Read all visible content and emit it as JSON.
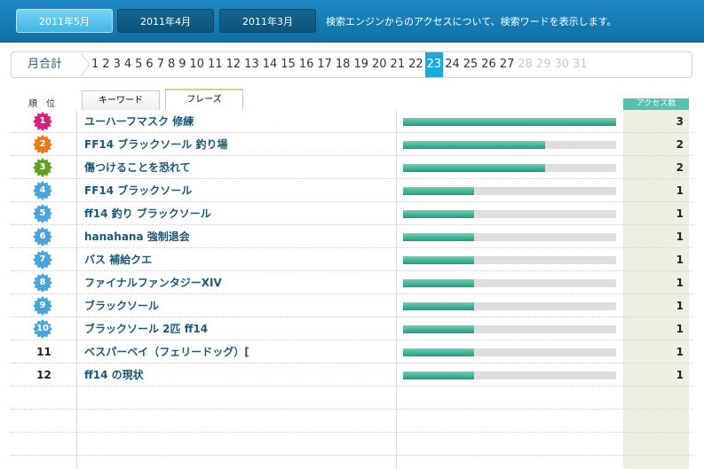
{
  "header": {
    "months": [
      {
        "label": "2011年5月",
        "active": true
      },
      {
        "label": "2011年4月",
        "active": false
      },
      {
        "label": "2011年3月",
        "active": false
      }
    ],
    "description": "検索エンジンからのアクセスについて、検索ワードを表示します。"
  },
  "daystrip": {
    "month_total_label": "月合計",
    "days": [
      "1",
      "2",
      "3",
      "4",
      "5",
      "6",
      "7",
      "8",
      "9",
      "10",
      "11",
      "12",
      "13",
      "14",
      "15",
      "16",
      "17",
      "18",
      "19",
      "20",
      "21",
      "22",
      "23",
      "24",
      "25",
      "26",
      "27",
      "28",
      "29",
      "30",
      "31"
    ],
    "active_day": "23",
    "disabled_from": 28
  },
  "table": {
    "rank_header": "順　位",
    "tabs": {
      "keyword": "キーワード",
      "phrase": "フレーズ"
    },
    "access_header": "アクセス数",
    "max_count": 3,
    "rows": [
      {
        "rank": "1",
        "word": "ユーハーフマスク 修練",
        "count": "3",
        "badge_color": "#d6207c"
      },
      {
        "rank": "2",
        "word": "FF14 ブラックソール 釣り場",
        "count": "2",
        "badge_color": "#e77a1c"
      },
      {
        "rank": "3",
        "word": "傷つけることを恐れて",
        "count": "2",
        "badge_color": "#5fa21d"
      },
      {
        "rank": "4",
        "word": "FF14 ブラックソール",
        "count": "1",
        "badge_color": "#4aa4dc"
      },
      {
        "rank": "5",
        "word": "ff14 釣り ブラックソール",
        "count": "1",
        "badge_color": "#4aa4dc"
      },
      {
        "rank": "6",
        "word": "hanahana 強制退会",
        "count": "1",
        "badge_color": "#4aa4dc"
      },
      {
        "rank": "7",
        "word": "バス 補給クエ",
        "count": "1",
        "badge_color": "#4aa4dc"
      },
      {
        "rank": "8",
        "word": "ファイナルファンタジーXIV",
        "count": "1",
        "badge_color": "#4aa4dc"
      },
      {
        "rank": "9",
        "word": "ブラックソール",
        "count": "1",
        "badge_color": "#4aa4dc"
      },
      {
        "rank": "10",
        "word": "ブラックソール 2匹 ff14",
        "count": "1",
        "badge_color": "#4aa4dc"
      },
      {
        "rank": "11",
        "word": "ベスパーベイ（フェリードッグ）[",
        "count": "1",
        "badge_color": ""
      },
      {
        "rank": "12",
        "word": "ff14 の現状",
        "count": "1",
        "badge_color": ""
      }
    ],
    "empty_rows": 4
  }
}
